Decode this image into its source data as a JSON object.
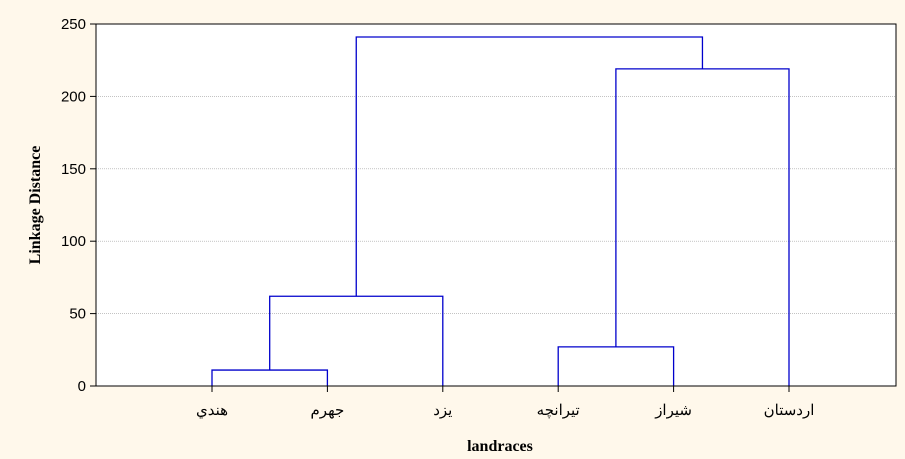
{
  "chart_data": {
    "type": "dendrogram",
    "title": "",
    "xlabel": "landraces",
    "ylabel": "Linkage Distance",
    "ylim": [
      0,
      250
    ],
    "yticks": [
      0,
      50,
      100,
      150,
      200,
      250
    ],
    "grid": true,
    "leaves": [
      "هندي",
      "جهرم",
      "يزد",
      "تيرانچه",
      "شيراز",
      "اردستان"
    ],
    "merges": [
      {
        "left": "هندي",
        "right": "جهرم",
        "height": 11
      },
      {
        "left": "هندي+جهرم",
        "right": "يزد",
        "height": 62
      },
      {
        "left": "تيرانچه",
        "right": "شيراز",
        "height": 27
      },
      {
        "left": "تيرانچه+شيراز",
        "right": "اردستان",
        "height": 219
      },
      {
        "left": "هندي+جهرم+يزد",
        "right": "تيرانچه+شيراز+اردستان",
        "height": 241
      }
    ],
    "colors": {
      "tree": "#0000CC",
      "grid": "#A0A0A0",
      "plot_bg": "#FFFFFF",
      "page_bg": "#FFF8EB"
    }
  }
}
